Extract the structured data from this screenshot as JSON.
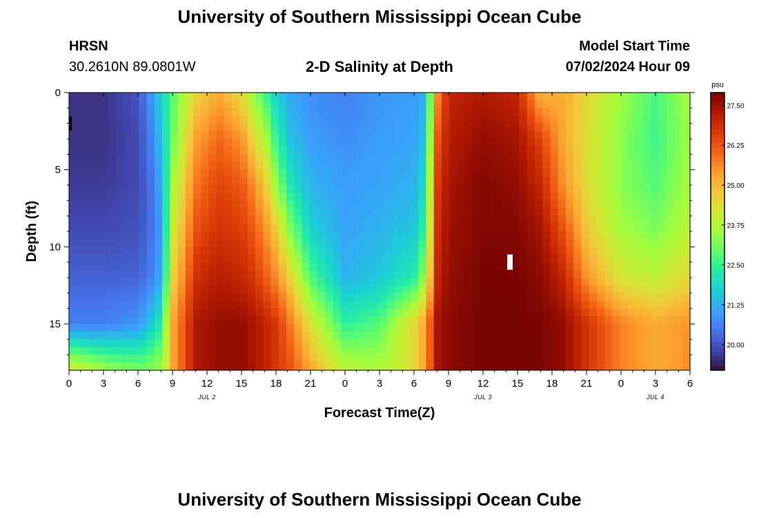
{
  "header": {
    "title": "University of Southern Mississippi Ocean Cube",
    "station_id": "HRSN",
    "station_coords": "30.2610N  89.0801W",
    "plot_title": "2-D Salinity at Depth",
    "model_start_label": "Model Start Time",
    "model_start_value": "07/02/2024 Hour 09"
  },
  "footer": {
    "title": "University of Southern Mississippi Ocean Cube"
  },
  "chart_data": {
    "type": "heatmap",
    "title": "2-D Salinity at Depth",
    "xlabel": "Forecast Time(Z)",
    "ylabel": "Depth (ft)",
    "x_tick_labels": [
      "0",
      "3",
      "6",
      "9",
      "12",
      "15",
      "18",
      "21",
      "0",
      "3",
      "6",
      "9",
      "12",
      "15",
      "18",
      "21",
      "0",
      "3",
      "6"
    ],
    "date_labels": [
      {
        "label": "JUL 2",
        "tick_index": 4
      },
      {
        "label": "JUL 3",
        "tick_index": 12
      },
      {
        "label": "JUL 4",
        "tick_index": 17
      }
    ],
    "y_ticks": [
      0,
      5,
      10,
      15
    ],
    "ylim": [
      0,
      18
    ],
    "y_inverted": true,
    "colorbar": {
      "unit": "psu",
      "range": [
        19.2,
        27.9
      ],
      "tick_labels": [
        "27.50",
        "26.25",
        "25.00",
        "23.75",
        "22.50",
        "21.25",
        "20.00"
      ],
      "tick_values": [
        27.5,
        26.25,
        25.0,
        23.75,
        22.5,
        21.25,
        20.0
      ],
      "colormap": [
        "#30123b",
        "#4145ab",
        "#4675ed",
        "#39a2fc",
        "#1bcfd4",
        "#24eca6",
        "#61fc6c",
        "#a4fc3b",
        "#d1e834",
        "#f3c63a",
        "#fe9b2d",
        "#f36315",
        "#d93806",
        "#b11901",
        "#7a0403"
      ]
    },
    "salinity_profiles": {
      "units": "psu",
      "depths_ft": [
        0,
        3,
        6,
        9,
        12,
        15,
        18
      ],
      "times_hours_from_jul2_0z": [
        0,
        3,
        6,
        7,
        8,
        9,
        11,
        13,
        15,
        16,
        17,
        18,
        19,
        21,
        24,
        27,
        30,
        31,
        32,
        33,
        36,
        39,
        41,
        43,
        45,
        48,
        51,
        54
      ],
      "values": [
        [
          19.6,
          19.6,
          19.7,
          19.9,
          20.2,
          20.6
        ],
        [
          19.6,
          19.6,
          19.7,
          19.9,
          20.2,
          20.6
        ],
        [
          20.0,
          19.9,
          19.9,
          20.0,
          20.2,
          20.9
        ],
        [
          20.8,
          20.5,
          20.3,
          20.3,
          20.5,
          21.5
        ],
        [
          21.8,
          21.5,
          21.2,
          21.0,
          21.2,
          22.3
        ],
        [
          22.8,
          23.0,
          23.5,
          24.0,
          24.5,
          25.2
        ],
        [
          24.5,
          25.3,
          25.8,
          26.3,
          26.8,
          27.3
        ],
        [
          25.2,
          26.0,
          26.5,
          26.8,
          27.2,
          27.6
        ],
        [
          24.4,
          25.5,
          26.2,
          26.6,
          27.0,
          27.6
        ],
        [
          23.5,
          24.5,
          25.6,
          26.2,
          26.7,
          27.4
        ],
        [
          22.6,
          23.8,
          24.8,
          25.6,
          26.2,
          27.1
        ],
        [
          21.8,
          22.5,
          23.5,
          24.8,
          25.6,
          26.7
        ],
        [
          21.2,
          21.6,
          22.3,
          23.5,
          24.8,
          26.0
        ],
        [
          20.8,
          21.0,
          21.3,
          21.8,
          22.8,
          24.3
        ],
        [
          20.6,
          20.8,
          21.0,
          21.1,
          21.3,
          22.4
        ],
        [
          20.9,
          21.0,
          21.1,
          21.3,
          21.6,
          22.8
        ],
        [
          21.0,
          21.1,
          21.3,
          21.6,
          22.3,
          24.5
        ],
        [
          21.3,
          21.6,
          22.0,
          22.6,
          23.5,
          25.3
        ],
        [
          25.5,
          26.2,
          26.6,
          26.8,
          27.0,
          27.4
        ],
        [
          27.0,
          27.2,
          27.4,
          27.5,
          27.6,
          27.7
        ],
        [
          27.3,
          27.6,
          27.8,
          27.8,
          27.9,
          27.9
        ],
        [
          27.0,
          27.4,
          27.6,
          27.8,
          27.9,
          27.9
        ],
        [
          25.0,
          26.5,
          27.0,
          27.4,
          27.7,
          27.9
        ],
        [
          25.2,
          25.2,
          25.5,
          26.3,
          27.0,
          27.6
        ],
        [
          24.5,
          24.4,
          24.4,
          24.8,
          25.5,
          26.8
        ],
        [
          23.5,
          23.3,
          23.3,
          23.6,
          24.2,
          25.7
        ],
        [
          22.7,
          22.6,
          22.8,
          23.2,
          23.9,
          25.2
        ],
        [
          23.6,
          23.5,
          23.6,
          23.9,
          24.5,
          25.5
        ]
      ]
    }
  }
}
